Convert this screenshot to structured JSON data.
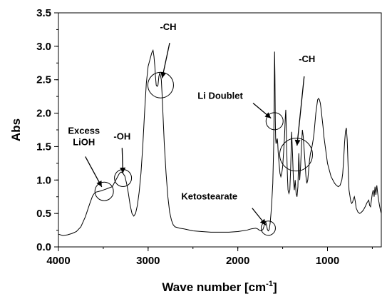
{
  "chart_data": {
    "type": "line",
    "title": "",
    "xlabel": "Wave number [cm",
    "xlabel_sup": "-1",
    "xlabel_close": "]",
    "ylabel": "Abs",
    "xlim": [
      4000,
      400
    ],
    "ylim": [
      0.0,
      3.5
    ],
    "x_ticks": [
      4000,
      3000,
      2000,
      1000
    ],
    "x_tick_labels": [
      "4000",
      "3000",
      "2000",
      "1000"
    ],
    "y_ticks": [
      0.0,
      0.5,
      1.0,
      1.5,
      2.0,
      2.5,
      3.0,
      3.5
    ],
    "y_tick_labels": [
      "0.0",
      "0.5",
      "1.0",
      "1.5",
      "2.0",
      "2.5",
      "3.0",
      "3.5"
    ],
    "grid": false,
    "legend": "none",
    "series": [
      {
        "x": [
          4000,
          3950,
          3900,
          3850,
          3800,
          3750,
          3700,
          3650,
          3620,
          3600,
          3580,
          3550,
          3520,
          3500,
          3480,
          3460,
          3440,
          3420,
          3400,
          3380,
          3360,
          3340,
          3320,
          3300,
          3280,
          3260,
          3240,
          3220,
          3200,
          3180,
          3160,
          3140,
          3120,
          3100,
          3080,
          3060,
          3040,
          3020,
          3000,
          2980,
          2960,
          2945,
          2935,
          2925,
          2918,
          2910,
          2900,
          2890,
          2880,
          2870,
          2860,
          2853,
          2845,
          2835,
          2820,
          2800,
          2780,
          2760,
          2740,
          2720,
          2700,
          2650,
          2600,
          2500,
          2400,
          2300,
          2200,
          2100,
          2000,
          1950,
          1900,
          1850,
          1800,
          1780,
          1760,
          1740,
          1720,
          1710,
          1700,
          1690,
          1680,
          1670,
          1660,
          1650,
          1640,
          1630,
          1620,
          1610,
          1600,
          1595,
          1590,
          1586,
          1582,
          1578,
          1574,
          1570,
          1565,
          1560,
          1555,
          1550,
          1540,
          1530,
          1520,
          1510,
          1500,
          1490,
          1480,
          1470,
          1465,
          1460,
          1455,
          1450,
          1445,
          1440,
          1430,
          1420,
          1410,
          1400,
          1390,
          1380,
          1370,
          1360,
          1350,
          1340,
          1330,
          1320,
          1310,
          1300,
          1290,
          1280,
          1270,
          1260,
          1250,
          1240,
          1230,
          1220,
          1210,
          1200,
          1190,
          1180,
          1170,
          1160,
          1150,
          1140,
          1130,
          1120,
          1110,
          1100,
          1090,
          1080,
          1070,
          1060,
          1050,
          1040,
          1030,
          1020,
          1010,
          1000,
          980,
          960,
          940,
          920,
          900,
          880,
          860,
          850,
          840,
          830,
          820,
          810,
          800,
          790,
          780,
          770,
          760,
          740,
          730,
          720,
          710,
          700,
          690,
          680,
          670,
          660,
          640,
          620,
          600,
          580,
          560,
          540,
          530,
          520,
          510,
          500,
          490,
          480,
          470,
          460,
          450,
          440,
          430,
          420,
          410,
          400
        ],
        "y": [
          0.19,
          0.17,
          0.18,
          0.2,
          0.23,
          0.3,
          0.45,
          0.65,
          0.76,
          0.8,
          0.82,
          0.83,
          0.84,
          0.85,
          0.86,
          0.87,
          0.88,
          0.89,
          0.9,
          0.95,
          1.0,
          1.05,
          1.1,
          1.12,
          1.1,
          1.06,
          0.95,
          0.8,
          0.62,
          0.5,
          0.46,
          0.5,
          0.62,
          0.82,
          1.1,
          1.5,
          2.0,
          2.45,
          2.7,
          2.8,
          2.9,
          2.94,
          2.85,
          2.7,
          2.55,
          2.42,
          2.4,
          2.42,
          2.55,
          2.6,
          2.55,
          2.5,
          2.3,
          2.0,
          1.55,
          1.1,
          0.75,
          0.52,
          0.4,
          0.33,
          0.3,
          0.28,
          0.27,
          0.24,
          0.23,
          0.22,
          0.22,
          0.22,
          0.23,
          0.24,
          0.25,
          0.27,
          0.28,
          0.27,
          0.25,
          0.24,
          0.26,
          0.3,
          0.36,
          0.38,
          0.33,
          0.26,
          0.24,
          0.26,
          0.35,
          0.5,
          0.7,
          0.95,
          1.5,
          2.1,
          2.92,
          2.55,
          1.9,
          1.62,
          1.55,
          1.55,
          1.6,
          1.62,
          1.55,
          1.42,
          1.25,
          1.1,
          1.05,
          1.1,
          1.2,
          1.4,
          1.62,
          1.95,
          2.05,
          1.8,
          1.5,
          1.2,
          1.0,
          0.85,
          0.8,
          0.85,
          1.2,
          1.72,
          1.4,
          1.0,
          0.85,
          1.0,
          0.8,
          0.75,
          0.9,
          1.4,
          1.0,
          1.2,
          1.5,
          1.75,
          1.65,
          1.45,
          1.25,
          1.05,
          0.95,
          1.0,
          1.15,
          1.3,
          1.4,
          1.45,
          1.52,
          1.6,
          1.7,
          1.85,
          2.0,
          2.1,
          2.2,
          2.22,
          2.2,
          2.15,
          2.05,
          1.92,
          1.8,
          1.65,
          1.55,
          1.45,
          1.35,
          1.25,
          1.15,
          1.05,
          1.0,
          0.95,
          0.92,
          0.9,
          0.92,
          0.96,
          1.0,
          1.1,
          1.3,
          1.55,
          1.72,
          1.78,
          1.6,
          1.2,
          0.85,
          0.68,
          0.65,
          0.67,
          0.72,
          0.75,
          0.68,
          0.58,
          0.55,
          0.52,
          0.5,
          0.52,
          0.55,
          0.6,
          0.66,
          0.7,
          0.62,
          0.6,
          0.7,
          0.8,
          0.85,
          0.75,
          0.9,
          0.78,
          0.92,
          0.8,
          0.7,
          0.62,
          0.55,
          0.5
        ]
      }
    ],
    "annotations": [
      {
        "text": [
          "Excess",
          "LiOH"
        ],
        "circle": [
          3490,
          0.83
        ],
        "arrow_from": [
          3700,
          1.35
        ]
      },
      {
        "text": [
          "-OH"
        ],
        "circle": [
          3280,
          1.03
        ],
        "arrow_from": [
          3290,
          1.48
        ]
      },
      {
        "text": [
          "-CH"
        ],
        "circle": [
          2860,
          2.42
        ],
        "arrow_from": [
          2760,
          3.05
        ]
      },
      {
        "text": [
          "Li Doublet"
        ],
        "circle": [
          1590,
          1.88
        ],
        "arrow_from": [
          1830,
          2.15
        ]
      },
      {
        "text": [
          "-CH"
        ],
        "circle": [
          1350,
          1.38
        ],
        "arrow_from": [
          1260,
          2.55
        ]
      },
      {
        "text": [
          "Ketostearate"
        ],
        "circle": [
          1660,
          0.28
        ],
        "arrow_from": [
          1840,
          0.58
        ]
      }
    ]
  }
}
